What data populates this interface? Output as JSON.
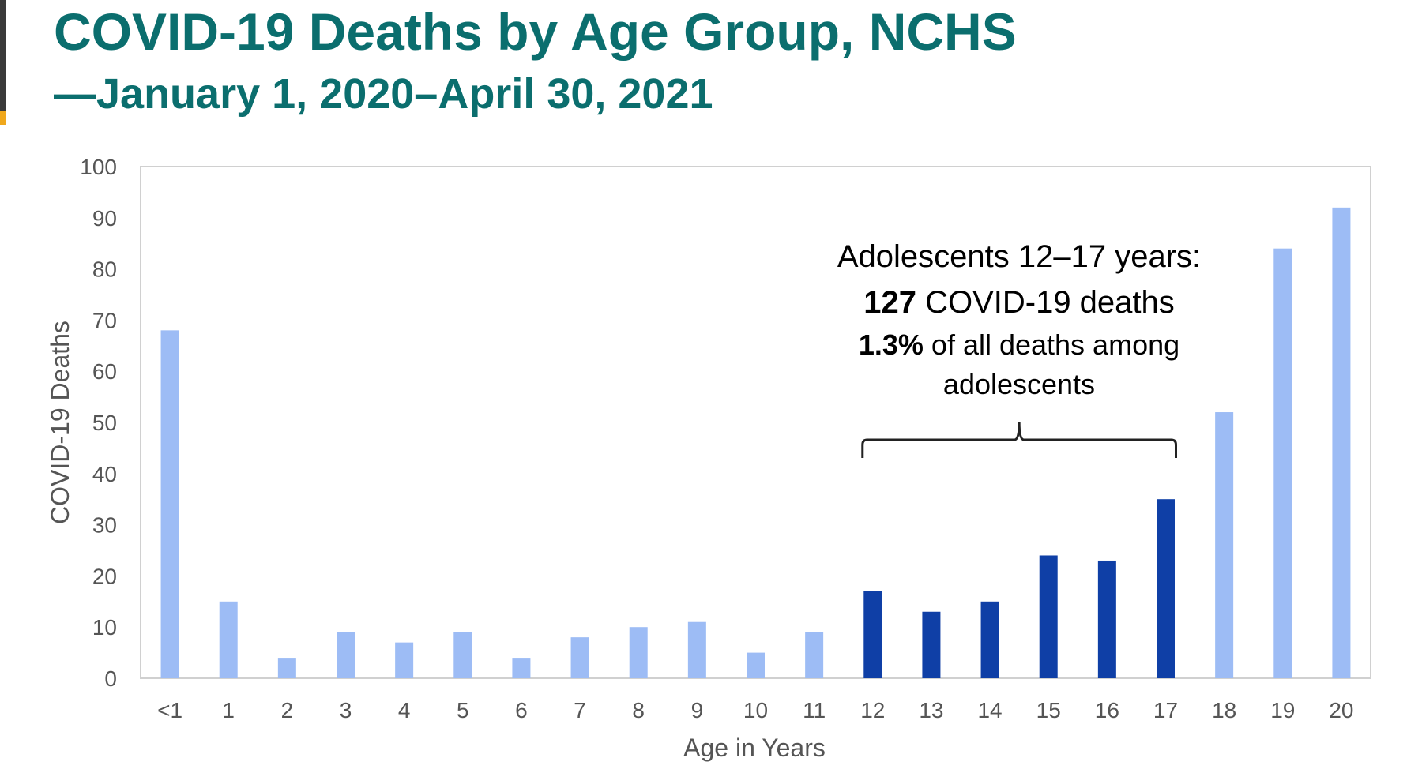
{
  "header": {
    "title": "COVID-19 Deaths by Age Group, NCHS",
    "subtitle": "—January 1, 2020–April 30, 2021"
  },
  "annotation": {
    "line1": "Adolescents 12–17 years:",
    "count_bold": "127",
    "count_rest": " COVID-19 deaths",
    "pct_bold": "1.3%",
    "pct_rest": " of all deaths among",
    "line4": "adolescents"
  },
  "colors": {
    "title": "#0b6e6e",
    "bar_default": "#9dbcf5",
    "bar_highlight": "#0f3fa6",
    "axis_text": "#555555",
    "grid": "#d0d0d0"
  },
  "chart_data": {
    "type": "bar",
    "title": "COVID-19 Deaths by Age Group, NCHS",
    "xlabel": "Age in Years",
    "ylabel": "COVID-19 Deaths",
    "ylim": [
      0,
      100
    ],
    "yticks": [
      0,
      10,
      20,
      30,
      40,
      50,
      60,
      70,
      80,
      90,
      100
    ],
    "categories": [
      "<1",
      "1",
      "2",
      "3",
      "4",
      "5",
      "6",
      "7",
      "8",
      "9",
      "10",
      "11",
      "12",
      "13",
      "14",
      "15",
      "16",
      "17",
      "18",
      "19",
      "20"
    ],
    "values": [
      68,
      15,
      4,
      9,
      7,
      9,
      4,
      8,
      10,
      11,
      5,
      9,
      17,
      13,
      15,
      24,
      23,
      35,
      52,
      84,
      92
    ],
    "highlighted_categories": [
      "12",
      "13",
      "14",
      "15",
      "16",
      "17"
    ],
    "grid": false,
    "legend": "none"
  }
}
